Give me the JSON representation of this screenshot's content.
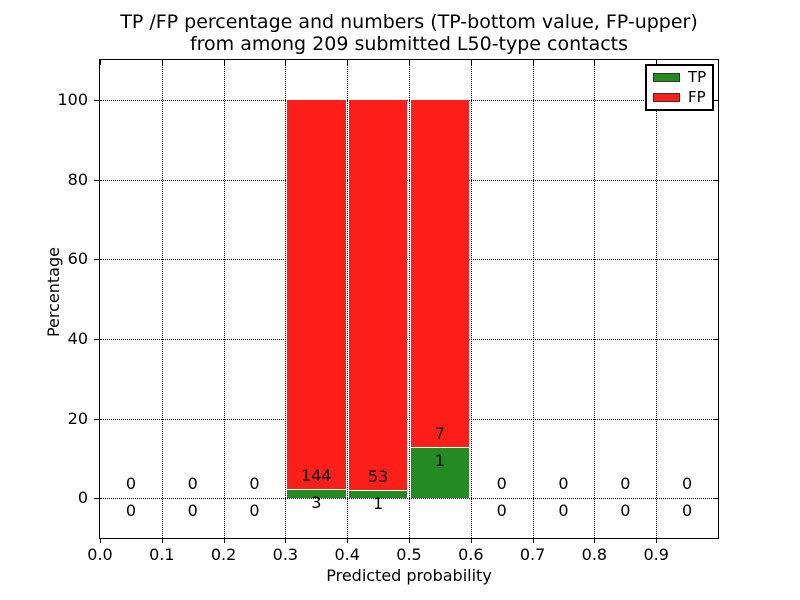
{
  "title": {
    "line1": "TP /FP percentage and numbers (TP-bottom value, FP-upper)",
    "line2": "from among 209 submitted L50-type contacts"
  },
  "axes": {
    "xlabel": "Predicted probability",
    "ylabel": "Percentage"
  },
  "legend": {
    "position": "upper right",
    "items": [
      {
        "label": "TP",
        "color": "#228b22"
      },
      {
        "label": "FP",
        "color": "#ff1f1a"
      }
    ]
  },
  "chart_data": {
    "type": "bar",
    "stacked": true,
    "title": "TP /FP percentage and numbers (TP-bottom value, FP-upper) from among 209 submitted L50-type contacts",
    "xlabel": "Predicted probability",
    "ylabel": "Percentage",
    "total_submitted_contacts": 209,
    "contact_type": "L50",
    "grid": true,
    "xlim": [
      0.0,
      1.0
    ],
    "ylim": [
      -10,
      110
    ],
    "bin_edges": [
      0.0,
      0.1,
      0.2,
      0.3,
      0.4,
      0.5,
      0.6,
      0.7,
      0.8,
      0.9,
      1.0
    ],
    "xticks": {
      "values": [
        0.0,
        0.1,
        0.2,
        0.3,
        0.4,
        0.5,
        0.6,
        0.7,
        0.8,
        0.9
      ],
      "labels": [
        "0.0",
        "0.1",
        "0.2",
        "0.3",
        "0.4",
        "0.5",
        "0.6",
        "0.7",
        "0.8",
        "0.9"
      ]
    },
    "yticks": {
      "values": [
        0,
        20,
        40,
        60,
        80,
        100
      ],
      "labels": [
        "0",
        "20",
        "40",
        "60",
        "80",
        "100"
      ]
    },
    "series": [
      {
        "name": "TP",
        "color": "#228b22",
        "counts": [
          0,
          0,
          0,
          3,
          1,
          1,
          0,
          0,
          0,
          0
        ],
        "percentages": [
          0,
          0,
          0,
          2.04,
          1.85,
          12.5,
          0,
          0,
          0,
          0
        ]
      },
      {
        "name": "FP",
        "color": "#ff1f1a",
        "counts": [
          0,
          0,
          0,
          144,
          53,
          7,
          0,
          0,
          0,
          0
        ],
        "percentages": [
          0,
          0,
          0,
          97.96,
          98.15,
          87.5,
          0,
          0,
          0,
          0
        ]
      }
    ],
    "bar_labels": {
      "upper_fp": [
        "0",
        "0",
        "0",
        "144",
        "53",
        "7",
        "0",
        "0",
        "0",
        "0"
      ],
      "lower_tp": [
        "0",
        "0",
        "0",
        "3",
        "1",
        "1",
        "0",
        "0",
        "0",
        "0"
      ]
    }
  }
}
